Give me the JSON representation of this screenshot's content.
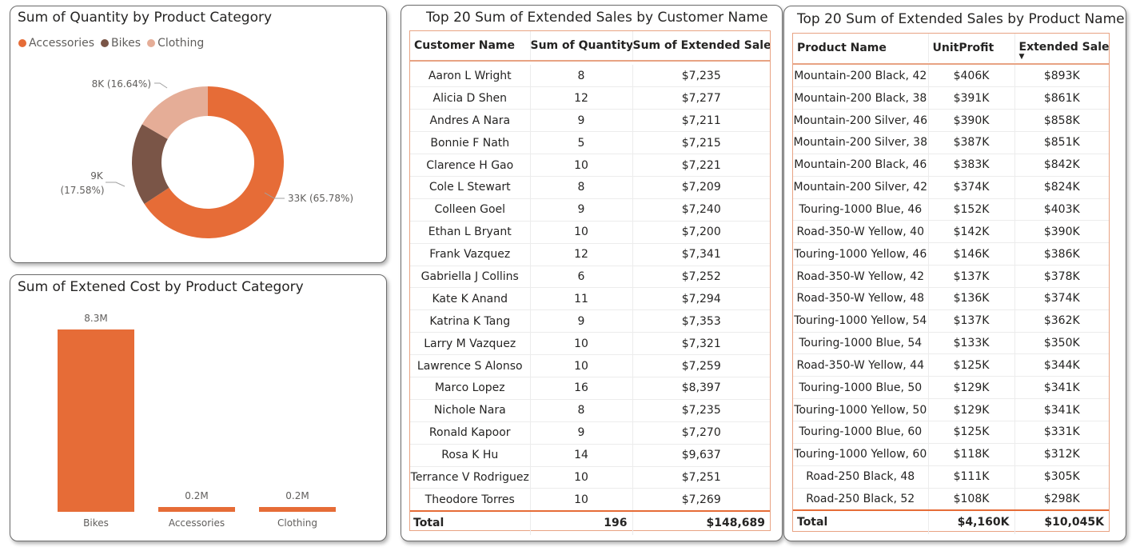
{
  "colors": {
    "accent": "#e66c37",
    "bikes": "#7a5547",
    "clothing": "#e5ad97"
  },
  "donut": {
    "title": "Sum of Quantity by Product Category",
    "legend": [
      {
        "label": "Accessories",
        "color": "#e66c37"
      },
      {
        "label": "Bikes",
        "color": "#7a5547"
      },
      {
        "label": "Clothing",
        "color": "#e5ad97"
      }
    ],
    "labels": {
      "clothing": "8K (16.64%)",
      "bikes_1": "9K",
      "bikes_2": "(17.58%)",
      "accessories": "33K (65.78%)"
    }
  },
  "bar": {
    "title": "Sum of Extened Cost by Product Category",
    "data_labels": [
      "8.3M",
      "0.2M",
      "0.2M"
    ]
  },
  "customers": {
    "title": "Top 20 Sum of Extended Sales by Customer Name",
    "headers": [
      "Customer Name",
      "Sum of Quantity",
      "Sum of Extended Sales"
    ],
    "rows": [
      [
        "Aaron L Wright",
        "8",
        "$7,235"
      ],
      [
        "Alicia D Shen",
        "12",
        "$7,277"
      ],
      [
        "Andres A Nara",
        "9",
        "$7,211"
      ],
      [
        "Bonnie F Nath",
        "5",
        "$7,215"
      ],
      [
        "Clarence H Gao",
        "10",
        "$7,221"
      ],
      [
        "Cole L Stewart",
        "8",
        "$7,209"
      ],
      [
        "Colleen Goel",
        "9",
        "$7,240"
      ],
      [
        "Ethan L Bryant",
        "10",
        "$7,200"
      ],
      [
        "Frank Vazquez",
        "12",
        "$7,341"
      ],
      [
        "Gabriella J Collins",
        "6",
        "$7,252"
      ],
      [
        "Kate K Anand",
        "11",
        "$7,294"
      ],
      [
        "Katrina K Tang",
        "9",
        "$7,353"
      ],
      [
        "Larry M Vazquez",
        "10",
        "$7,321"
      ],
      [
        "Lawrence S Alonso",
        "10",
        "$7,259"
      ],
      [
        "Marco Lopez",
        "16",
        "$8,397"
      ],
      [
        "Nichole Nara",
        "8",
        "$7,235"
      ],
      [
        "Ronald Kapoor",
        "9",
        "$7,270"
      ],
      [
        "Rosa K Hu",
        "14",
        "$9,637"
      ],
      [
        "Terrance V Rodriguez",
        "10",
        "$7,251"
      ],
      [
        "Theodore Torres",
        "10",
        "$7,269"
      ]
    ],
    "total": [
      "Total",
      "196",
      "$148,689"
    ]
  },
  "products": {
    "title": "Top 20 Sum of Extended Sales by Product Name",
    "headers": [
      "Product Name",
      "UnitProfit",
      "Extended Sales"
    ],
    "rows": [
      [
        "Mountain-200 Black, 42",
        "$406K",
        "$893K"
      ],
      [
        "Mountain-200 Black, 38",
        "$391K",
        "$861K"
      ],
      [
        "Mountain-200 Silver, 46",
        "$390K",
        "$858K"
      ],
      [
        "Mountain-200 Silver, 38",
        "$387K",
        "$851K"
      ],
      [
        "Mountain-200 Black, 46",
        "$383K",
        "$842K"
      ],
      [
        "Mountain-200 Silver, 42",
        "$374K",
        "$824K"
      ],
      [
        "Touring-1000 Blue, 46",
        "$152K",
        "$403K"
      ],
      [
        "Road-350-W Yellow, 40",
        "$142K",
        "$390K"
      ],
      [
        "Touring-1000 Yellow, 46",
        "$146K",
        "$386K"
      ],
      [
        "Road-350-W Yellow, 42",
        "$137K",
        "$378K"
      ],
      [
        "Road-350-W Yellow, 48",
        "$136K",
        "$374K"
      ],
      [
        "Touring-1000 Yellow, 54",
        "$137K",
        "$362K"
      ],
      [
        "Touring-1000 Blue, 54",
        "$133K",
        "$350K"
      ],
      [
        "Road-350-W Yellow, 44",
        "$125K",
        "$344K"
      ],
      [
        "Touring-1000 Blue, 50",
        "$129K",
        "$341K"
      ],
      [
        "Touring-1000 Yellow, 50",
        "$129K",
        "$341K"
      ],
      [
        "Touring-1000 Blue, 60",
        "$125K",
        "$331K"
      ],
      [
        "Touring-1000 Yellow, 60",
        "$118K",
        "$312K"
      ],
      [
        "Road-250 Black, 48",
        "$111K",
        "$305K"
      ],
      [
        "Road-250 Black, 52",
        "$108K",
        "$298K"
      ]
    ],
    "total": [
      "Total",
      "$4,160K",
      "$10,045K"
    ]
  },
  "chart_data": [
    {
      "type": "pie",
      "title": "Sum of Quantity by Product Category",
      "categories": [
        "Accessories",
        "Bikes",
        "Clothing"
      ],
      "values": [
        33000,
        9000,
        8000
      ],
      "percents": [
        65.78,
        17.58,
        16.64
      ],
      "legend": "top-left"
    },
    {
      "type": "bar",
      "title": "Sum of Extened Cost by Product Category",
      "categories": [
        "Bikes",
        "Accessories",
        "Clothing"
      ],
      "values": [
        8.3,
        0.2,
        0.2
      ],
      "unit": "M",
      "ylim": [
        0,
        8.3
      ]
    }
  ]
}
